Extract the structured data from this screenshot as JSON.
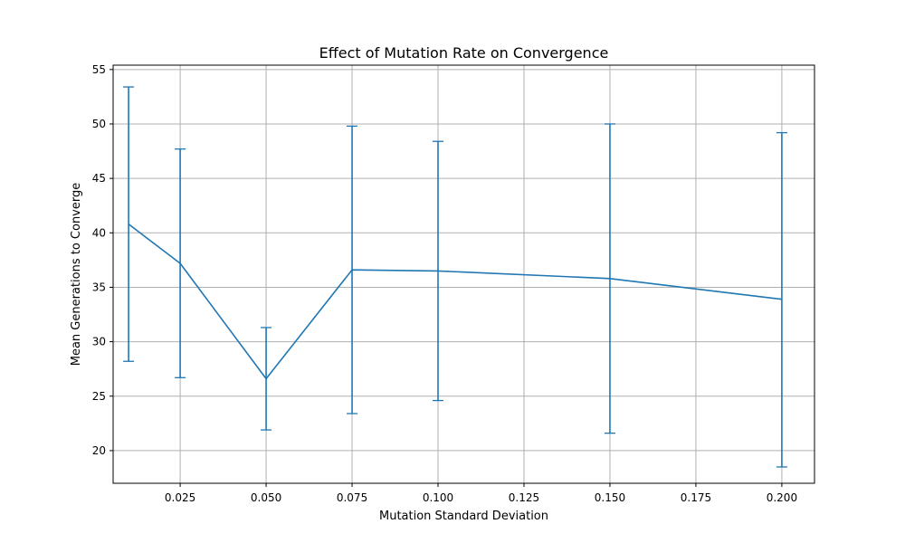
{
  "chart_data": {
    "type": "line",
    "title": "Effect of Mutation Rate on Convergence",
    "xlabel": "Mutation Standard Deviation",
    "ylabel": "Mean Generations to Converge",
    "xlim": [
      0.0055,
      0.2095
    ],
    "ylim": [
      17,
      55.4
    ],
    "xticks": [
      0.025,
      0.05,
      0.075,
      0.1,
      0.125,
      0.15,
      0.175,
      0.2
    ],
    "xtick_labels": [
      "0.025",
      "0.050",
      "0.075",
      "0.100",
      "0.125",
      "0.150",
      "0.175",
      "0.200"
    ],
    "yticks": [
      20,
      25,
      30,
      35,
      40,
      45,
      50,
      55
    ],
    "ytick_labels": [
      "20",
      "25",
      "30",
      "35",
      "40",
      "45",
      "50",
      "55"
    ],
    "grid": true,
    "series": [
      {
        "color": "#1f77b4",
        "x": [
          0.01,
          0.025,
          0.05,
          0.075,
          0.1,
          0.15,
          0.2
        ],
        "y": [
          40.8,
          37.2,
          26.6,
          36.6,
          36.5,
          35.8,
          33.9
        ],
        "error_low": [
          28.2,
          26.7,
          21.9,
          23.4,
          24.6,
          21.6,
          18.5
        ],
        "error_high": [
          53.4,
          47.7,
          31.3,
          49.8,
          48.4,
          50.0,
          49.2
        ]
      }
    ]
  }
}
